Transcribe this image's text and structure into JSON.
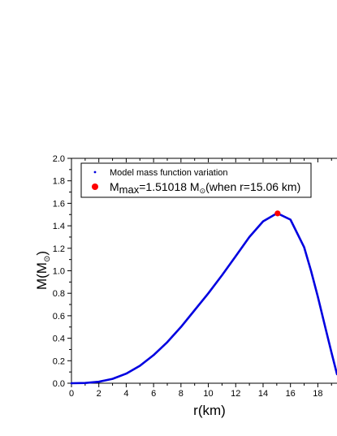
{
  "chart_data": {
    "type": "line",
    "xlabel": "r(km)",
    "ylabel": "M(M",
    "ylabel_sub": "⊙",
    "ylabel_close": ")",
    "xlim": [
      0,
      19.4
    ],
    "ylim": [
      0,
      2.0
    ],
    "x_ticks": [
      "0",
      "2",
      "4",
      "6",
      "8",
      "10",
      "12",
      "14",
      "16",
      "18"
    ],
    "y_ticks": [
      "0.0",
      "0.2",
      "0.4",
      "0.6",
      "0.8",
      "1.0",
      "1.2",
      "1.4",
      "1.6",
      "1.8",
      "2.0"
    ],
    "series": [
      {
        "name": "Model mass function variation",
        "color": "#0000e0",
        "x": [
          0,
          1,
          2,
          3,
          4,
          5,
          6,
          7,
          8,
          9,
          10,
          11,
          12,
          13,
          14,
          15,
          15.06,
          16,
          17,
          17.5,
          18,
          18.5,
          19,
          19.4
        ],
        "y": [
          0,
          0.002,
          0.013,
          0.039,
          0.085,
          0.155,
          0.25,
          0.365,
          0.5,
          0.65,
          0.8,
          0.96,
          1.13,
          1.3,
          1.44,
          1.51,
          1.51018,
          1.455,
          1.21,
          1.0,
          0.77,
          0.52,
          0.27,
          0.08
        ]
      }
    ],
    "highlight": {
      "x": 15.06,
      "y": 1.51018,
      "color": "#ff0000",
      "label_main": "M",
      "label_sub": "max",
      "label_rest": "=1.51018 M",
      "label_sun": "⊙",
      "label_tail": "(when r=15.06 km)"
    },
    "legend_position": "top-left",
    "grid": false
  }
}
